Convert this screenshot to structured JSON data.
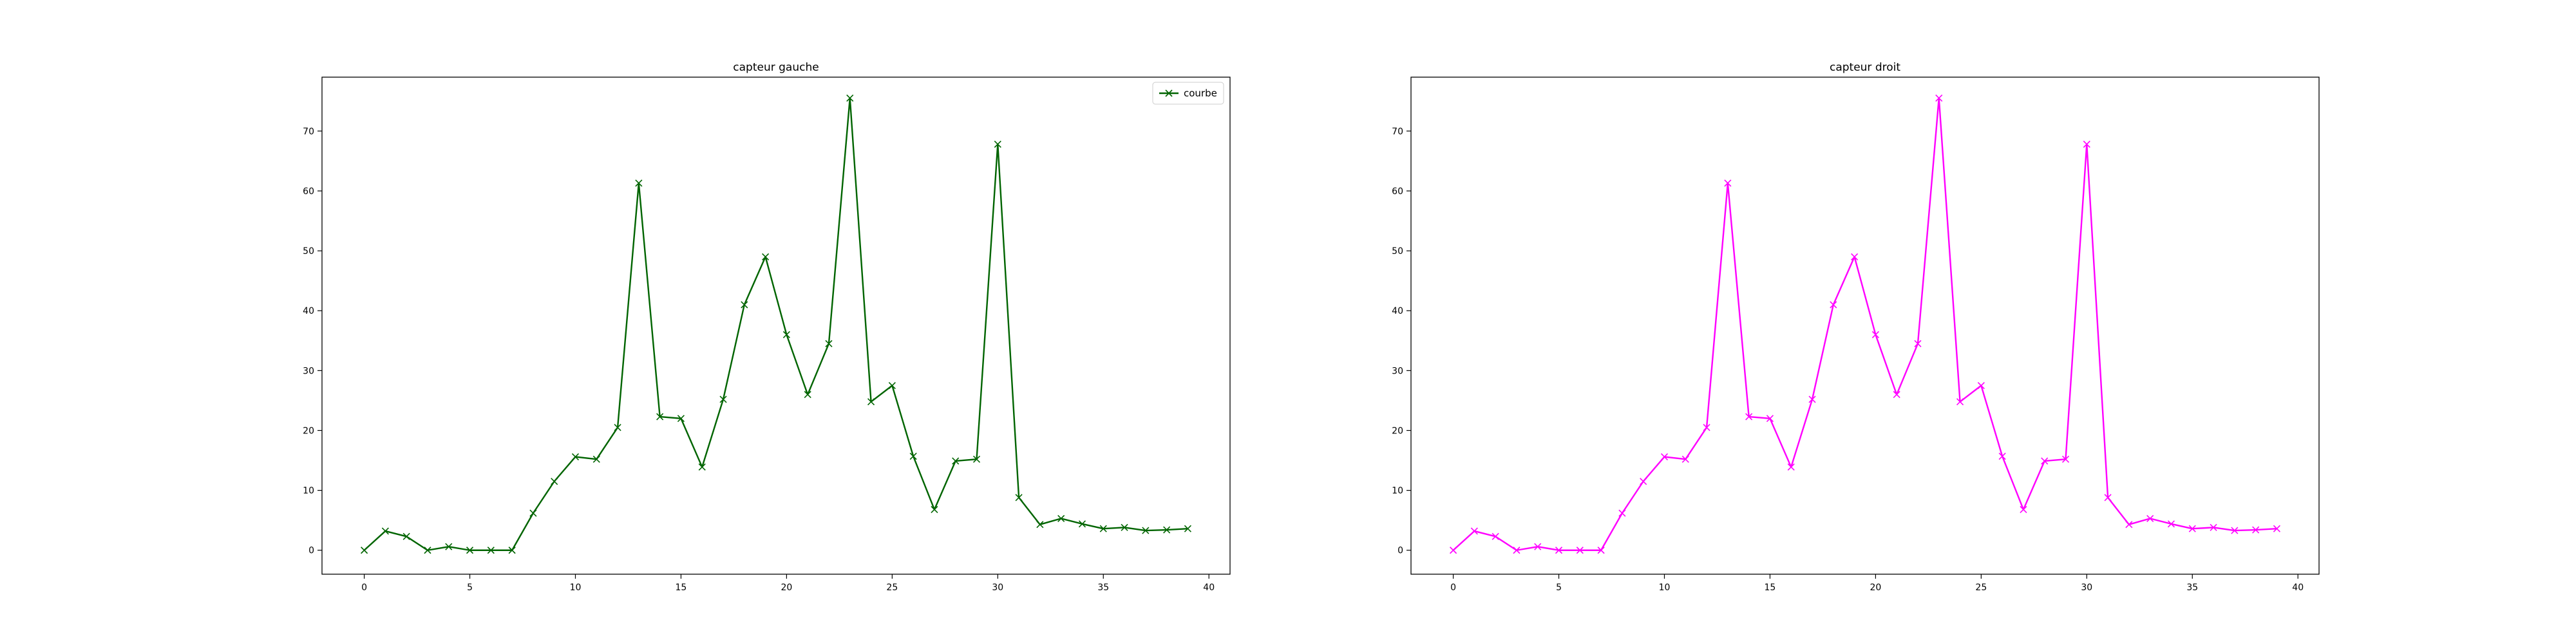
{
  "chart_data": [
    {
      "type": "line",
      "title": "capteur gauche",
      "xlabel": "",
      "ylabel": "",
      "xlim": [
        -2,
        41
      ],
      "ylim": [
        -4,
        79
      ],
      "xticks": [
        0,
        5,
        10,
        15,
        20,
        25,
        30,
        35,
        40
      ],
      "yticks": [
        0,
        10,
        20,
        30,
        40,
        50,
        60,
        70
      ],
      "grid": false,
      "legend": "top-right",
      "x": [
        0,
        1,
        2,
        3,
        4,
        5,
        6,
        7,
        8,
        9,
        10,
        11,
        12,
        13,
        14,
        15,
        16,
        17,
        18,
        19,
        20,
        21,
        22,
        23,
        24,
        25,
        26,
        27,
        28,
        29,
        30,
        31,
        32,
        33,
        34,
        35,
        36,
        37,
        38,
        39
      ],
      "series": [
        {
          "name": "courbe",
          "color": "#006400",
          "marker": "x",
          "values": [
            0.0,
            3.2,
            2.3,
            0.0,
            0.6,
            0.0,
            0.0,
            0.0,
            6.2,
            11.5,
            15.6,
            15.2,
            20.5,
            61.3,
            22.3,
            22.0,
            13.9,
            25.2,
            41.0,
            49.0,
            36.0,
            26.0,
            34.5,
            75.5,
            24.8,
            27.5,
            15.7,
            6.8,
            14.9,
            15.2,
            67.8,
            8.8,
            4.3,
            5.3,
            4.4,
            3.6,
            3.8,
            3.3,
            3.4,
            3.6
          ]
        }
      ]
    },
    {
      "type": "line",
      "title": "capteur droit",
      "xlabel": "",
      "ylabel": "",
      "xlim": [
        -2,
        41
      ],
      "ylim": [
        -4,
        79
      ],
      "xticks": [
        0,
        5,
        10,
        15,
        20,
        25,
        30,
        35,
        40
      ],
      "yticks": [
        0,
        10,
        20,
        30,
        40,
        50,
        60,
        70
      ],
      "grid": false,
      "x": [
        0,
        1,
        2,
        3,
        4,
        5,
        6,
        7,
        8,
        9,
        10,
        11,
        12,
        13,
        14,
        15,
        16,
        17,
        18,
        19,
        20,
        21,
        22,
        23,
        24,
        25,
        26,
        27,
        28,
        29,
        30,
        31,
        32,
        33,
        34,
        35,
        36,
        37,
        38,
        39
      ],
      "series": [
        {
          "color": "#ff00ff",
          "marker": "x",
          "values": [
            0.0,
            3.2,
            2.3,
            0.0,
            0.6,
            0.0,
            0.0,
            0.0,
            6.2,
            11.5,
            15.6,
            15.2,
            20.5,
            61.3,
            22.3,
            22.0,
            13.9,
            25.2,
            41.0,
            49.0,
            36.0,
            26.0,
            34.5,
            75.5,
            24.8,
            27.5,
            15.7,
            6.8,
            14.9,
            15.2,
            67.8,
            8.8,
            4.3,
            5.3,
            4.4,
            3.6,
            3.8,
            3.3,
            3.4,
            3.6
          ]
        }
      ]
    }
  ]
}
